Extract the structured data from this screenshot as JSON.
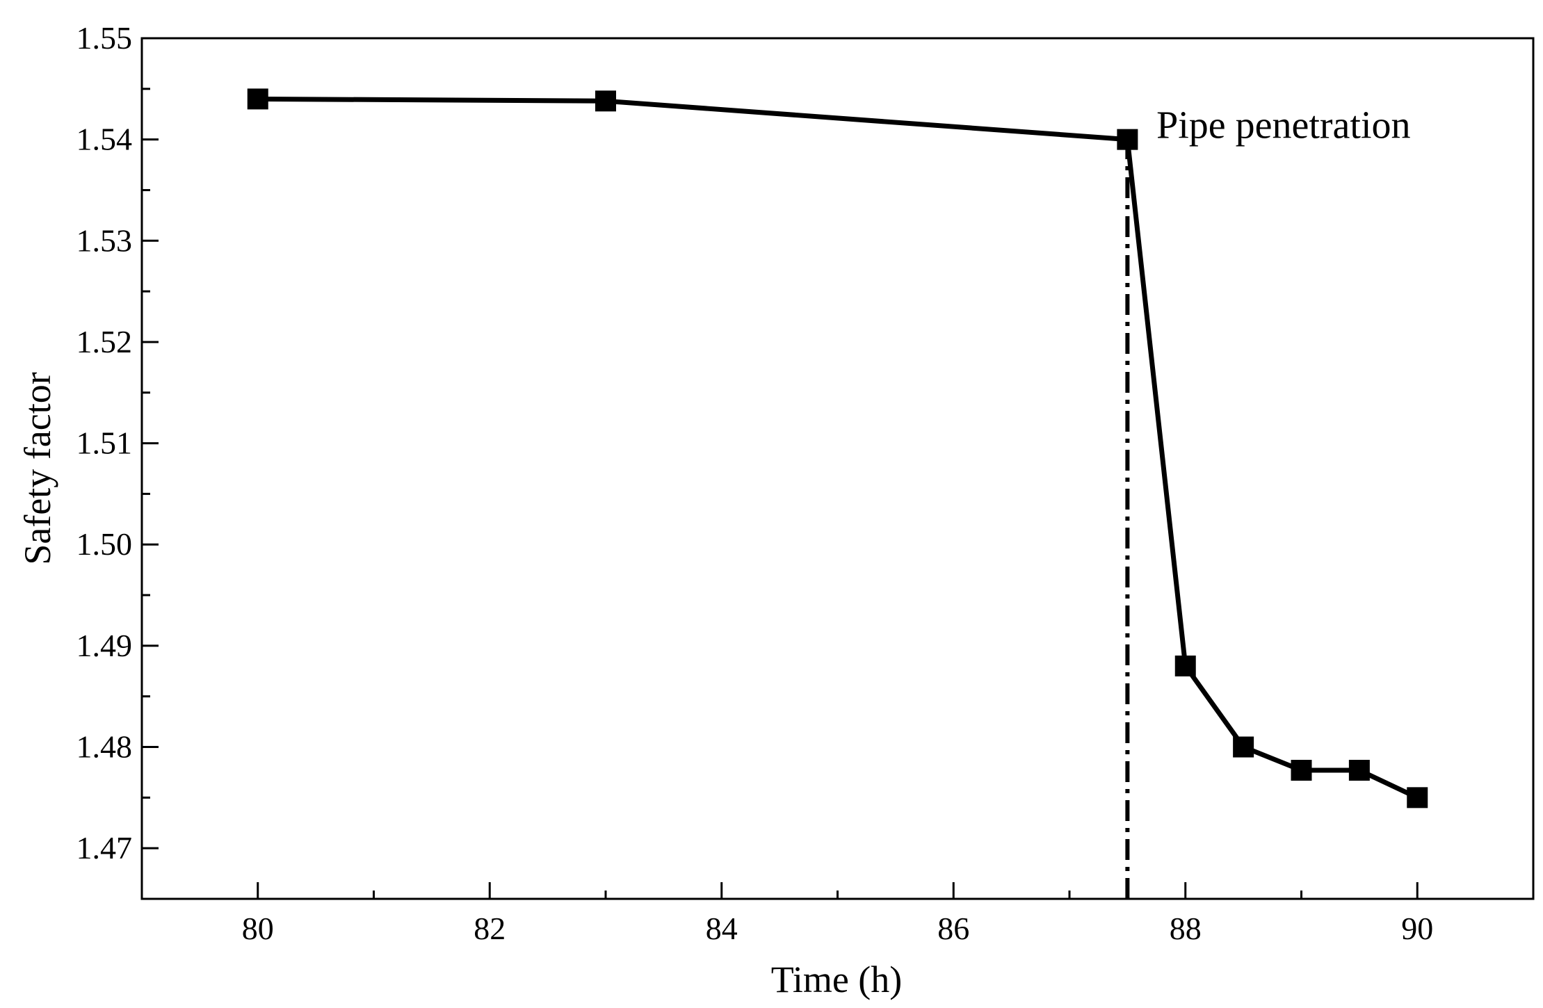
{
  "chart_data": {
    "type": "line",
    "title": "",
    "xlabel": "Time (h)",
    "ylabel": "Safety factor",
    "xlim": [
      79,
      91
    ],
    "ylim": [
      1.465,
      1.55
    ],
    "xticks": [
      80,
      82,
      84,
      86,
      88,
      90
    ],
    "xtick_labels": [
      "80",
      "82",
      "84",
      "86",
      "88",
      "90"
    ],
    "xminor_ticks": [
      81,
      83,
      85,
      87,
      89
    ],
    "yticks": [
      1.47,
      1.48,
      1.49,
      1.5,
      1.51,
      1.52,
      1.53,
      1.54,
      1.55
    ],
    "ytick_labels": [
      "1.47",
      "1.48",
      "1.49",
      "1.50",
      "1.51",
      "1.52",
      "1.53",
      "1.54",
      "1.55"
    ],
    "yminor_ticks": [
      1.475,
      1.485,
      1.495,
      1.505,
      1.515,
      1.525,
      1.535,
      1.545
    ],
    "grid": false,
    "series": [
      {
        "name": "Safety factor",
        "marker": "square",
        "color": "#000000",
        "x": [
          80,
          83,
          87.5,
          88,
          88.5,
          89,
          89.5,
          90
        ],
        "y": [
          1.544,
          1.5438,
          1.54,
          1.488,
          1.48,
          1.4777,
          1.4777,
          1.475
        ]
      }
    ],
    "reference_line": {
      "orientation": "vertical",
      "x": 87.5,
      "style": "dash-dot",
      "y_from": 1.465,
      "y_to": 1.54
    },
    "annotations": [
      {
        "text": "Pipe penetration",
        "x": 87.75,
        "y": 1.54
      }
    ]
  }
}
